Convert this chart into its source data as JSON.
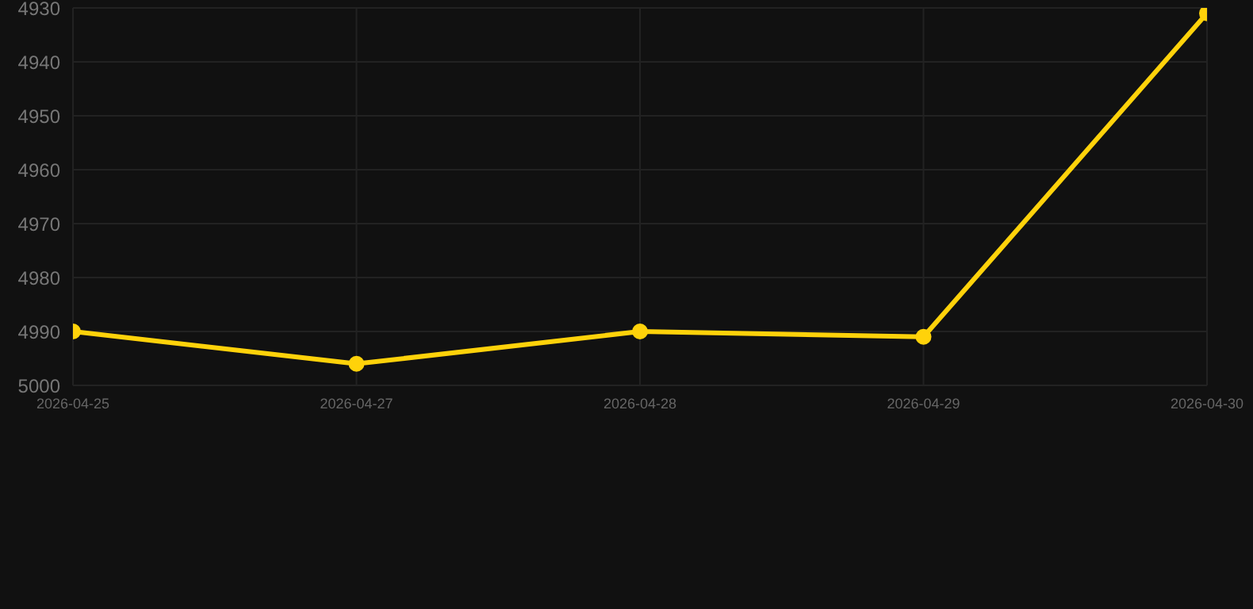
{
  "chart_data": {
    "type": "line",
    "categories": [
      "2026-04-25",
      "2026-04-27",
      "2026-04-28",
      "2026-04-29",
      "2026-04-30"
    ],
    "series": [
      {
        "color": "#ffd20a",
        "values": [
          4990,
          4996,
          4990,
          4991,
          4931
        ]
      }
    ],
    "ylim": [
      5000,
      4930
    ],
    "yticks": [
      4930,
      4940,
      4950,
      4960,
      4970,
      4980,
      4990,
      5000
    ],
    "grid": true,
    "marker": "circle",
    "line_style": "solid"
  }
}
